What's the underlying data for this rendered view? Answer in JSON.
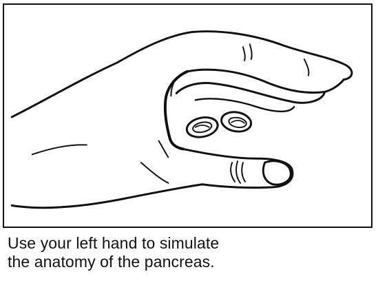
{
  "figure": {
    "illustration": "left-hand-pancreas-illustration",
    "stroke_color": "#111111",
    "background_color": "#ffffff"
  },
  "caption": {
    "line1": "Use your left hand to simulate",
    "line2": "the anatomy of the pancreas."
  }
}
